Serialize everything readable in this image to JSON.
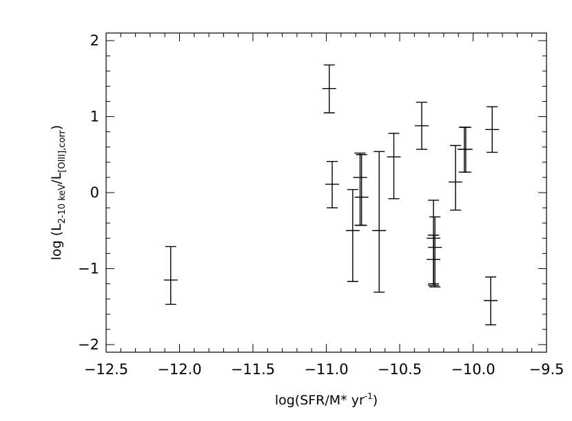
{
  "chart_data": {
    "type": "scatter",
    "subtype": "error-bars",
    "title": "",
    "xlabel": "log(SFR/M* yr",
    "xlabel_sup": "-1",
    "xlabel_close": ")",
    "ylabel": {
      "prefix": "log (L",
      "num_sub": "2-10 keV",
      "slash": "/L",
      "den_sub": "[OIII],corr",
      "close": ")"
    },
    "xlim": [
      -12.5,
      -9.5
    ],
    "ylim": [
      -2.1,
      2.1
    ],
    "xticks": [
      -12.5,
      -12.0,
      -11.5,
      -11.0,
      -10.5,
      -10.0,
      -9.5
    ],
    "xtick_labels": [
      "−12.5",
      "−12.0",
      "−11.5",
      "−11.0",
      "−10.5",
      "−10.0",
      "−9.5"
    ],
    "yticks": [
      -2,
      -1,
      0,
      1,
      2
    ],
    "ytick_labels": [
      "−2",
      "−1",
      "0",
      "1",
      "2"
    ],
    "grid": false,
    "points": [
      {
        "x": -12.06,
        "y": -1.15,
        "ylow": -1.47,
        "yhigh": -0.71
      },
      {
        "x": -10.98,
        "y": 1.37,
        "ylow": 1.05,
        "yhigh": 1.68
      },
      {
        "x": -10.96,
        "y": 0.11,
        "ylow": -0.2,
        "yhigh": 0.41
      },
      {
        "x": -10.82,
        "y": -0.5,
        "ylow": -1.17,
        "yhigh": 0.04
      },
      {
        "x": -10.77,
        "y": 0.2,
        "ylow": -0.43,
        "yhigh": 0.52
      },
      {
        "x": -10.76,
        "y": -0.06,
        "ylow": -0.43,
        "yhigh": 0.5
      },
      {
        "x": -10.64,
        "y": -0.5,
        "ylow": -1.31,
        "yhigh": 0.54
      },
      {
        "x": -10.54,
        "y": 0.47,
        "ylow": -0.08,
        "yhigh": 0.78
      },
      {
        "x": -10.35,
        "y": 0.88,
        "ylow": 0.57,
        "yhigh": 1.19
      },
      {
        "x": -10.27,
        "y": -0.6,
        "ylow": -1.2,
        "yhigh": -0.1
      },
      {
        "x": -10.26,
        "y": -0.72,
        "ylow": -1.24,
        "yhigh": -0.32
      },
      {
        "x": -10.27,
        "y": -0.88,
        "ylow": -1.22,
        "yhigh": -0.56
      },
      {
        "x": -10.12,
        "y": 0.14,
        "ylow": -0.23,
        "yhigh": 0.62
      },
      {
        "x": -10.06,
        "y": 0.57,
        "ylow": 0.27,
        "yhigh": 0.86
      },
      {
        "x": -10.05,
        "y": 0.57,
        "ylow": 0.27,
        "yhigh": 0.86
      },
      {
        "x": -9.87,
        "y": 0.83,
        "ylow": 0.53,
        "yhigh": 1.13
      },
      {
        "x": -9.88,
        "y": -1.42,
        "ylow": -1.74,
        "yhigh": -1.11
      }
    ]
  }
}
